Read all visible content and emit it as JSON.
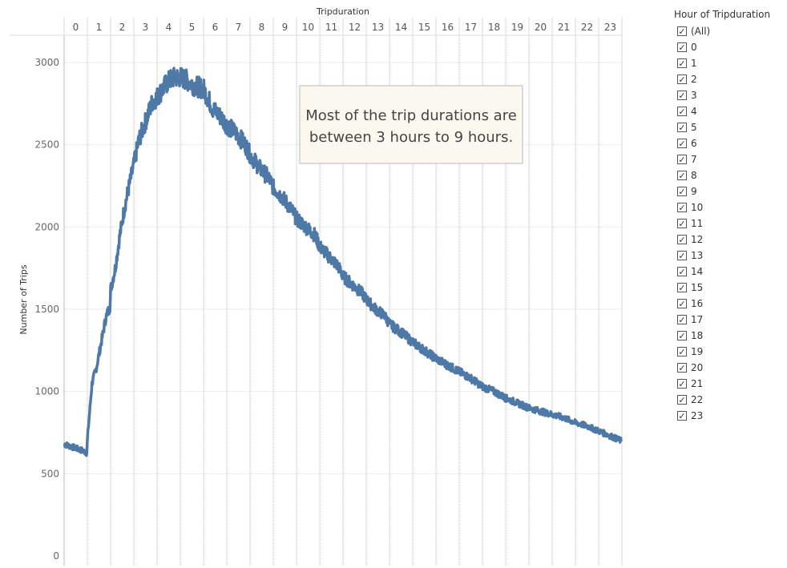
{
  "chart_data": {
    "type": "line",
    "title": "",
    "xlabel": "Tripduration",
    "ylabel": "Number of Trips",
    "x_categories": [
      "0",
      "1",
      "2",
      "3",
      "4",
      "5",
      "6",
      "7",
      "8",
      "9",
      "10",
      "11",
      "12",
      "13",
      "14",
      "15",
      "16",
      "17",
      "18",
      "19",
      "20",
      "21",
      "22",
      "23"
    ],
    "y_ticks": [
      "0",
      "500",
      "1000",
      "1500",
      "2000",
      "2500",
      "3000"
    ],
    "ylim": [
      0,
      3000
    ],
    "x_axis_position": "top",
    "grid": true,
    "series": [
      {
        "color": "#4e79a7",
        "x": [
          0,
          0.2,
          0.4,
          0.6,
          0.8,
          0.98,
          1.0,
          1.2,
          1.4,
          1.6,
          1.8,
          1.98,
          2.0,
          2.2,
          2.4,
          2.6,
          2.8,
          3.0,
          3.2,
          3.4,
          3.6,
          3.8,
          4.0,
          4.2,
          4.4,
          4.6,
          4.8,
          5.0,
          5.2,
          5.4,
          5.6,
          5.8,
          6.0,
          6.2,
          6.4,
          6.6,
          6.8,
          7.0,
          7.4,
          7.8,
          8.0,
          8.4,
          8.8,
          9.0,
          9.4,
          9.8,
          10.0,
          10.4,
          10.8,
          11.0,
          11.4,
          11.8,
          12.0,
          12.4,
          12.8,
          13.0,
          13.4,
          13.8,
          14.0,
          14.5,
          15.0,
          15.5,
          16.0,
          16.5,
          17.0,
          17.5,
          18.0,
          18.5,
          19.0,
          19.5,
          20.0,
          20.5,
          21.0,
          21.5,
          22.0,
          22.5,
          23.0,
          23.5,
          23.97
        ],
        "y": [
          680,
          670,
          660,
          650,
          640,
          625,
          710,
          1050,
          1150,
          1300,
          1450,
          1520,
          1620,
          1750,
          1950,
          2120,
          2250,
          2380,
          2520,
          2600,
          2680,
          2760,
          2790,
          2830,
          2870,
          2900,
          2910,
          2910,
          2900,
          2880,
          2860,
          2850,
          2840,
          2780,
          2720,
          2690,
          2660,
          2620,
          2570,
          2500,
          2440,
          2360,
          2300,
          2240,
          2180,
          2100,
          2050,
          2000,
          1950,
          1880,
          1820,
          1760,
          1700,
          1650,
          1600,
          1560,
          1500,
          1460,
          1410,
          1360,
          1300,
          1250,
          1200,
          1160,
          1120,
          1080,
          1030,
          1000,
          960,
          930,
          900,
          880,
          860,
          840,
          810,
          790,
          760,
          730,
          700
        ]
      }
    ],
    "annotations": [
      {
        "text_lines": [
          "Most of the trip durations are",
          "between 3 hours to 9 hours."
        ]
      }
    ]
  },
  "legend": {
    "title": "Hour of Tripduration",
    "check_glyph": "✓",
    "items": [
      "(All)",
      "0",
      "1",
      "2",
      "3",
      "4",
      "5",
      "6",
      "7",
      "8",
      "9",
      "10",
      "11",
      "12",
      "13",
      "14",
      "15",
      "16",
      "17",
      "18",
      "19",
      "20",
      "21",
      "22",
      "23"
    ]
  }
}
